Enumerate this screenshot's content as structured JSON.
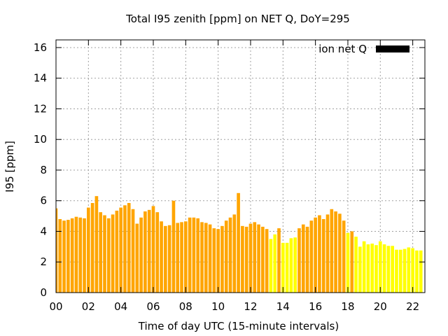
{
  "chart_data": {
    "type": "bar",
    "title": "Total I95 zenith [ppm] on NET Q, DoY=295",
    "xlabel": "Time of day UTC (15-minute intervals)",
    "ylabel": "I95 [ppm]",
    "xlim": [
      0,
      22.75
    ],
    "ylim": [
      0,
      16.5
    ],
    "x_ticks": [
      "00",
      "02",
      "04",
      "06",
      "08",
      "10",
      "12",
      "14",
      "16",
      "18",
      "20",
      "22"
    ],
    "y_ticks": [
      "0",
      "2",
      "4",
      "6",
      "8",
      "10",
      "12",
      "14",
      "16"
    ],
    "legend": {
      "label": "ion net Q",
      "position": "top-right"
    },
    "grid": true,
    "bar_interval_hours": 0.25,
    "colors": {
      "high": "#ffa500",
      "low": "#ffff00"
    },
    "series": [
      {
        "name": "ion net Q",
        "values": [
          5.5,
          4.8,
          4.7,
          4.75,
          4.85,
          4.95,
          4.9,
          4.85,
          5.55,
          5.85,
          6.3,
          5.25,
          5.05,
          4.85,
          5.1,
          5.35,
          5.55,
          5.7,
          5.85,
          5.45,
          4.5,
          4.9,
          5.3,
          5.4,
          5.65,
          5.25,
          4.65,
          4.35,
          4.4,
          6.0,
          4.55,
          4.6,
          4.65,
          4.9,
          4.9,
          4.85,
          4.6,
          4.55,
          4.45,
          4.2,
          4.15,
          4.35,
          4.7,
          4.9,
          5.1,
          6.5,
          4.35,
          4.3,
          4.5,
          4.6,
          4.45,
          4.3,
          4.15,
          3.5,
          3.8,
          4.2,
          3.25,
          3.25,
          3.55,
          3.6,
          4.2,
          4.45,
          4.3,
          4.7,
          4.9,
          5.05,
          4.8,
          5.1,
          5.45,
          5.3,
          5.15,
          4.7,
          3.9,
          4.0,
          3.65,
          3.0,
          3.35,
          3.15,
          3.2,
          3.1,
          3.35,
          3.15,
          3.05,
          3.05,
          2.8,
          2.8,
          2.85,
          2.95,
          2.9,
          2.75,
          2.75
        ],
        "colors": [
          "#ffa500",
          "#ffa500",
          "#ffa500",
          "#ffa500",
          "#ffa500",
          "#ffa500",
          "#ffa500",
          "#ffa500",
          "#ffa500",
          "#ffa500",
          "#ffa500",
          "#ffa500",
          "#ffa500",
          "#ffa500",
          "#ffa500",
          "#ffa500",
          "#ffa500",
          "#ffa500",
          "#ffa500",
          "#ffa500",
          "#ffa500",
          "#ffa500",
          "#ffa500",
          "#ffa500",
          "#ffa500",
          "#ffa500",
          "#ffa500",
          "#ffa500",
          "#ffa500",
          "#ffa500",
          "#ffa500",
          "#ffa500",
          "#ffa500",
          "#ffa500",
          "#ffa500",
          "#ffa500",
          "#ffa500",
          "#ffa500",
          "#ffa500",
          "#ffa500",
          "#ffa500",
          "#ffa500",
          "#ffa500",
          "#ffa500",
          "#ffa500",
          "#ffa500",
          "#ffa500",
          "#ffa500",
          "#ffa500",
          "#ffa500",
          "#ffa500",
          "#ffa500",
          "#ffa500",
          "#ffff00",
          "#ffff00",
          "#ffa500",
          "#ffff00",
          "#ffff00",
          "#ffff00",
          "#ffff00",
          "#ffa500",
          "#ffa500",
          "#ffa500",
          "#ffa500",
          "#ffa500",
          "#ffa500",
          "#ffa500",
          "#ffa500",
          "#ffa500",
          "#ffa500",
          "#ffa500",
          "#ffa500",
          "#ffff00",
          "#ffa500",
          "#ffff00",
          "#ffff00",
          "#ffff00",
          "#ffff00",
          "#ffff00",
          "#ffff00",
          "#ffff00",
          "#ffff00",
          "#ffff00",
          "#ffff00",
          "#ffff00",
          "#ffff00",
          "#ffff00",
          "#ffff00",
          "#ffff00",
          "#ffff00",
          "#ffff00"
        ]
      }
    ]
  }
}
